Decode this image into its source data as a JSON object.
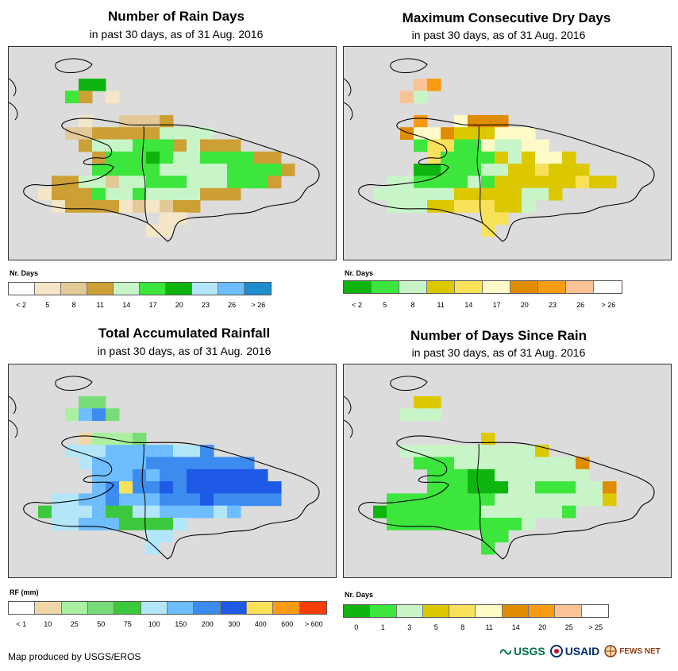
{
  "panels": [
    {
      "title": "Number of Rain Days",
      "subtitle": "in past 30 days, as of 31 Aug. 2016",
      "legend_title": "Nr. Days",
      "legend_colors": [
        "#ffffff",
        "#f5e6c8",
        "#e3c998",
        "#cda035",
        "#c8f5c8",
        "#3ce63c",
        "#0fb40f",
        "#b4e6fa",
        "#6ebeff",
        "#1e8ccd"
      ],
      "legend_labels": [
        "< 2",
        "5",
        "8",
        "11",
        "14",
        "17",
        "20",
        "23",
        "26",
        "> 26"
      ]
    },
    {
      "title": "Maximum Consecutive Dry Days",
      "subtitle": "in past 30 days, as of 31 Aug. 2016",
      "legend_title": "Nr. Days",
      "legend_colors": [
        "#0fb40f",
        "#3ce63c",
        "#c8f5c8",
        "#dcc800",
        "#fae15a",
        "#fffac8",
        "#e08c00",
        "#fa9b14",
        "#fac396",
        "#ffffff"
      ],
      "legend_labels": [
        "< 2",
        "5",
        "8",
        "11",
        "14",
        "17",
        "20",
        "23",
        "26",
        "> 26"
      ]
    },
    {
      "title": "Total Accumulated Rainfall",
      "subtitle": "in past 30 days, as of 31 Aug. 2016",
      "legend_title": "RF (mm)",
      "legend_colors": [
        "#ffffff",
        "#f0d7aa",
        "#aaf0a0",
        "#78dc78",
        "#3cc83c",
        "#b4e6fa",
        "#6ebeff",
        "#3c8cf0",
        "#1e5ae6",
        "#fae15a",
        "#fa9b14",
        "#fa3c0a"
      ],
      "legend_labels": [
        "< 1",
        "10",
        "25",
        "50",
        "75",
        "100",
        "150",
        "200",
        "300",
        "400",
        "600",
        "> 600"
      ]
    },
    {
      "title": "Number of Days Since Rain",
      "subtitle": "in past 30 days, as of 31 Aug. 2016",
      "legend_title": "Nr. Days",
      "legend_colors": [
        "#0fb40f",
        "#3ce63c",
        "#c8f5c8",
        "#dcc800",
        "#fae15a",
        "#fffac8",
        "#e08c00",
        "#fa9b14",
        "#fac396",
        "#ffffff"
      ],
      "legend_labels": [
        "0",
        "1",
        "3",
        "5",
        "8",
        "11",
        "14",
        "20",
        "25",
        "> 25"
      ]
    }
  ],
  "footer": "Map produced by USGS/EROS",
  "logos": {
    "usgs": "USGS",
    "usaid": "USAID",
    "fews": "FEWS NET"
  }
}
